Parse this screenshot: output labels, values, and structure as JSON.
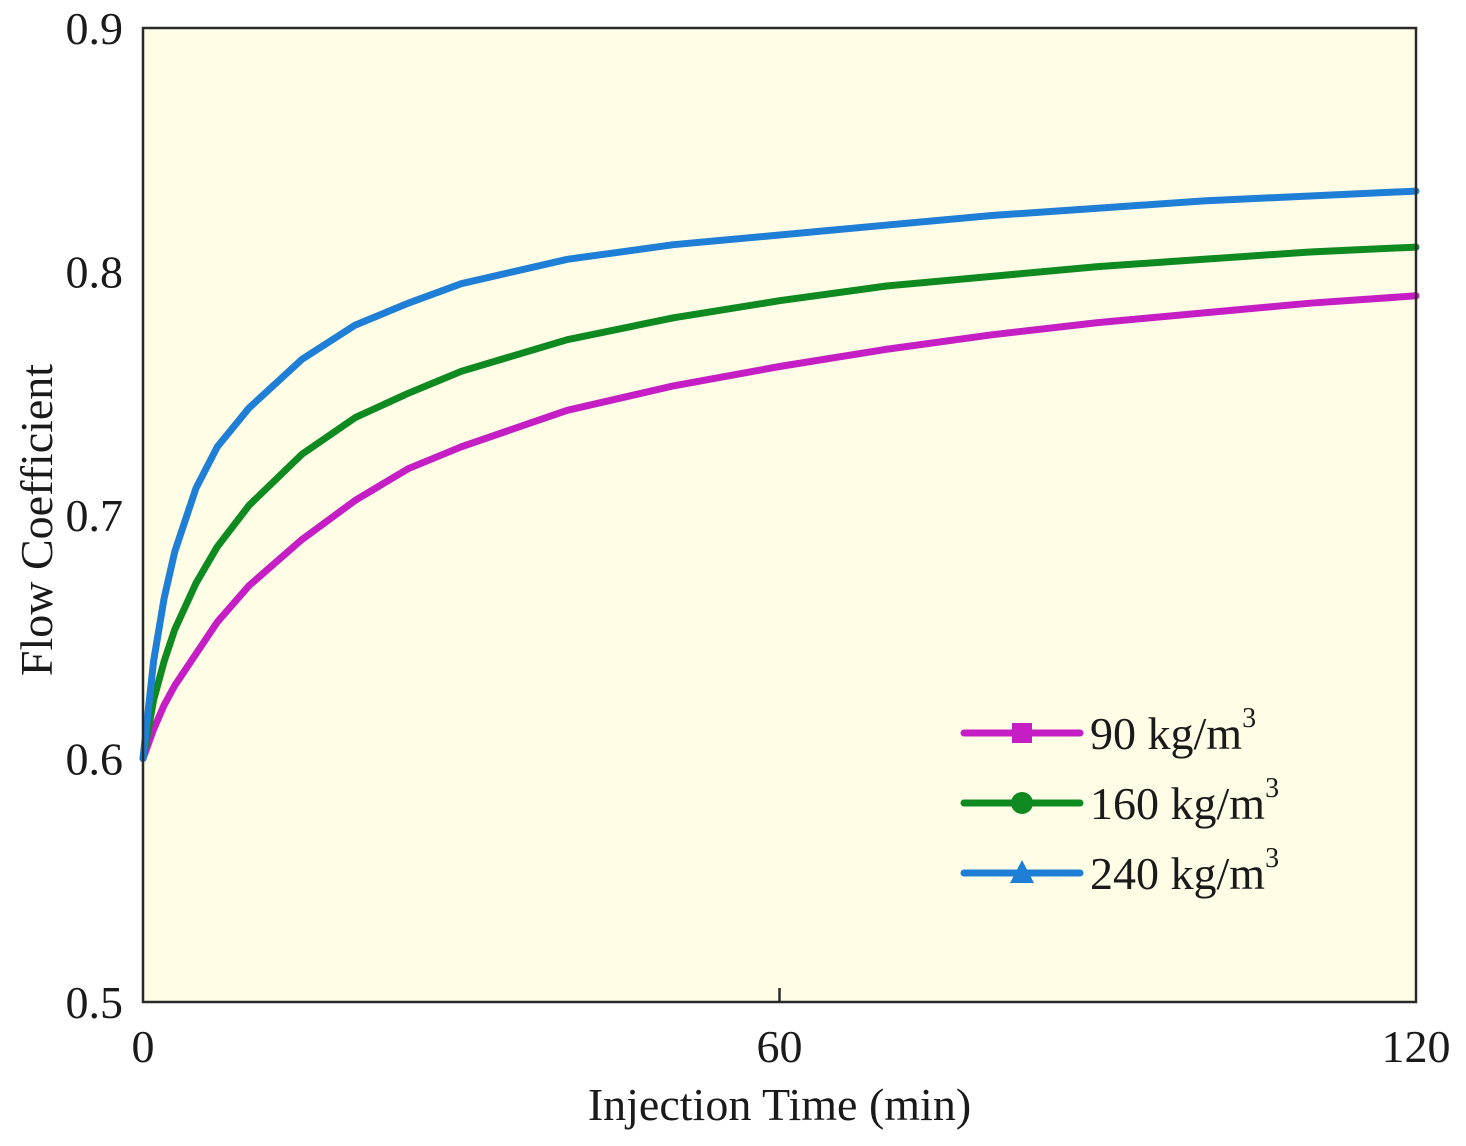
{
  "chart_data": {
    "type": "line",
    "title": "",
    "xlabel": "Injection Time (min)",
    "ylabel": "Flow Coefficient",
    "xlim": [
      0,
      120
    ],
    "ylim": [
      0.5,
      0.9
    ],
    "x_ticks": [
      0,
      60,
      120
    ],
    "x_tick_labels": [
      "0",
      "60",
      "120"
    ],
    "y_ticks": [
      0.5,
      0.6,
      0.7,
      0.8,
      0.9
    ],
    "y_tick_labels": [
      "0.5",
      "0.6",
      "0.7",
      "0.8",
      "0.9"
    ],
    "grid": false,
    "legend_position": "bottom-right",
    "background_color": "#fffde6",
    "x": [
      0,
      1,
      2,
      3,
      5,
      7,
      10,
      15,
      20,
      25,
      30,
      40,
      50,
      60,
      70,
      80,
      90,
      100,
      110,
      120
    ],
    "series": [
      {
        "name": "90 kg/m",
        "unit_superscript": "3",
        "color": "#c41ec4",
        "marker": "square",
        "values": [
          0.6,
          0.612,
          0.622,
          0.63,
          0.643,
          0.656,
          0.671,
          0.69,
          0.706,
          0.719,
          0.728,
          0.743,
          0.753,
          0.761,
          0.768,
          0.774,
          0.779,
          0.783,
          0.787,
          0.79
        ]
      },
      {
        "name": "160 kg/m",
        "unit_superscript": "3",
        "color": "#0f8a20",
        "marker": "circle",
        "values": [
          0.6,
          0.624,
          0.64,
          0.653,
          0.672,
          0.687,
          0.704,
          0.725,
          0.74,
          0.75,
          0.759,
          0.772,
          0.781,
          0.788,
          0.794,
          0.798,
          0.802,
          0.805,
          0.808,
          0.81
        ]
      },
      {
        "name": "240 kg/m",
        "unit_superscript": "3",
        "color": "#1f7fd6",
        "marker": "triangle",
        "values": [
          0.6,
          0.64,
          0.666,
          0.685,
          0.711,
          0.728,
          0.744,
          0.764,
          0.778,
          0.787,
          0.795,
          0.805,
          0.811,
          0.815,
          0.819,
          0.823,
          0.826,
          0.829,
          0.831,
          0.833
        ]
      }
    ]
  }
}
